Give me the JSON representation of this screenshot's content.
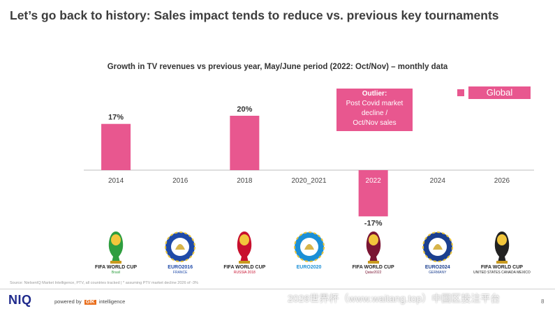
{
  "slide": {
    "title": "Let’s go back to history: Sales impact tends to reduce vs. previous key tournaments",
    "source": "Source: NielsenIQ Market Intelligence, PTV, all countries tracked | * assuming PTV market decline 2026 of -3%",
    "page_number": "8",
    "watermark": "2026世界杯（www.waitang.top）中国区投注平台",
    "brand": "NIQ",
    "powered_by_prefix": "powered by",
    "powered_by_gfk": "GfK",
    "powered_by_suffix": "intelligence"
  },
  "chart_data": {
    "type": "bar",
    "title": "Growth in TV revenues vs previous year, May/June period (2022: Oct/Nov) – monthly data",
    "categories": [
      "2014",
      "2016",
      "2018",
      "2020_2021",
      "2022",
      "2024",
      "2026"
    ],
    "series": [
      {
        "name": "Global",
        "values": [
          17,
          null,
          20,
          null,
          -17,
          null,
          null
        ],
        "labels": [
          "17%",
          "",
          "20%",
          "",
          "-17%",
          "",
          ""
        ]
      }
    ],
    "ylim": [
      -17,
      20
    ],
    "grid": false,
    "legend": "top-right",
    "bar_color": "#e8578f",
    "annotation": {
      "category": "2022",
      "heading": "Outlier:",
      "lines": [
        "Post Covid market",
        "decline /",
        "Oct/Nov sales"
      ]
    }
  },
  "logos": [
    {
      "icon": "fifa-world-cup-2014-logo",
      "line1": "FIFA WORLD CUP",
      "line2": "Brasil",
      "color": "#2e9e3f"
    },
    {
      "icon": "euro-2016-logo",
      "line1": "EURO2016",
      "line2": "FRANCE",
      "color": "#1f4aa8"
    },
    {
      "icon": "fifa-world-cup-2018-logo",
      "line1": "FIFA WORLD CUP",
      "line2": "RUSSIA 2018",
      "color": "#c8102e"
    },
    {
      "icon": "euro-2020-logo",
      "line1": "EURO2020",
      "line2": "",
      "color": "#1b8fd6"
    },
    {
      "icon": "fifa-world-cup-2022-logo",
      "line1": "FIFA WORLD CUP",
      "line2": "Qatar2022",
      "color": "#7a1533"
    },
    {
      "icon": "euro-2024-logo",
      "line1": "EURO2024",
      "line2": "GERMANY",
      "color": "#1b3f8f"
    },
    {
      "icon": "fifa-world-cup-2026-logo",
      "line1": "FIFA WORLD CUP",
      "line2": "UNITED STATES CANADA MEXICO",
      "color": "#222222"
    }
  ]
}
